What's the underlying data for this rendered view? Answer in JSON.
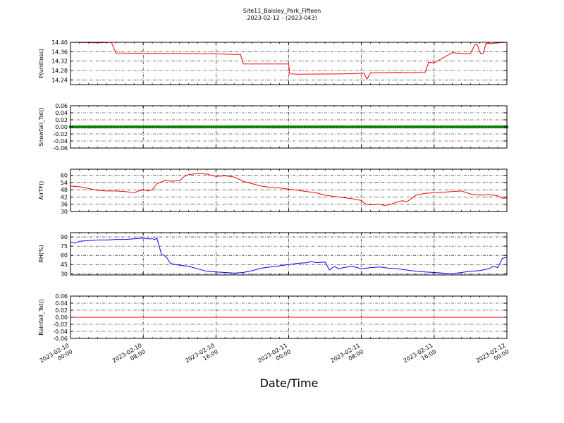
{
  "figure": {
    "title": "Site11_Baisley_Park_Fifteen",
    "subtitle": "2023-02-12 - (2023-043)",
    "xlabel": "Date/Time"
  },
  "chart_data": [
    {
      "type": "line",
      "ylabel": "P(unitless)",
      "ylim": [
        14.22,
        14.4
      ],
      "yticks": [
        "14.24",
        "14.28",
        "14.32",
        "14.36",
        "14.40"
      ],
      "ytick_values": [
        14.24,
        14.28,
        14.32,
        14.36,
        14.4
      ],
      "color": "#ff0000",
      "grid": true,
      "series": [
        {
          "x": [
            0,
            3,
            4.5,
            5,
            10,
            16,
            18,
            18.7,
            19,
            24,
            24.1,
            25,
            30,
            32,
            32.3,
            32.6,
            33,
            36,
            37,
            39,
            39.4,
            39.8,
            40,
            42,
            43,
            43.1,
            44,
            44.5,
            44.7,
            45.1,
            45.4,
            45.7,
            45.9,
            46.3,
            46.6,
            47,
            48
          ],
          "y": [
            14.4,
            14.398,
            14.4,
            14.354,
            14.353,
            14.351,
            14.348,
            14.348,
            14.308,
            14.308,
            14.266,
            14.264,
            14.266,
            14.268,
            14.268,
            14.243,
            14.27,
            14.272,
            14.271,
            14.272,
            14.315,
            14.313,
            14.313,
            14.356,
            14.353,
            14.352,
            14.352,
            14.392,
            14.392,
            14.353,
            14.353,
            14.395,
            14.396,
            14.394,
            14.396,
            14.398,
            14.4
          ]
        }
      ]
    },
    {
      "type": "line",
      "ylabel": "Snowfall_Tot()",
      "ylim": [
        -0.06,
        0.06
      ],
      "yticks": [
        "-0.06",
        "-0.04",
        "-0.02",
        "0.00",
        "0.02",
        "0.04",
        "0.06"
      ],
      "ytick_values": [
        -0.06,
        -0.04,
        -0.02,
        0.0,
        0.02,
        0.04,
        0.06
      ],
      "color": "#008000",
      "markers": true,
      "grid": true,
      "series": [
        {
          "x_range": [
            0,
            48
          ],
          "value": 0.0
        }
      ]
    },
    {
      "type": "line",
      "ylabel": "AirTF()",
      "ylim": [
        30,
        65
      ],
      "yticks": [
        "30",
        "36",
        "42",
        "48",
        "54",
        "60"
      ],
      "ytick_values": [
        30,
        36,
        42,
        48,
        54,
        60
      ],
      "color": "#ff0000",
      "grid": true,
      "series": [
        {
          "x": [
            0,
            1,
            2,
            3,
            4,
            5,
            6,
            7,
            7.5,
            8,
            8.5,
            9,
            9.5,
            10,
            10.5,
            11,
            12,
            12.5,
            13,
            14,
            15,
            16,
            17,
            18,
            19,
            20,
            21,
            22,
            23,
            24,
            25,
            26,
            27,
            28,
            29,
            30,
            31,
            31.5,
            32,
            32.5,
            33,
            34,
            34.5,
            35,
            36,
            36.5,
            37,
            38,
            39,
            40,
            41,
            42,
            43,
            44,
            45,
            46,
            47,
            47.5,
            48
          ],
          "y": [
            51,
            50.5,
            49,
            47.5,
            47,
            47,
            46.5,
            45.5,
            47,
            48,
            47,
            48,
            53,
            54.5,
            56,
            55,
            55.5,
            59,
            60.5,
            61.5,
            61,
            59,
            59.5,
            58.5,
            55,
            53,
            51,
            50,
            49.5,
            48.5,
            47.5,
            46.5,
            45.5,
            43.5,
            42.5,
            41.5,
            40.5,
            40,
            39,
            36,
            35.5,
            36,
            35,
            35.5,
            38,
            39,
            38,
            43.5,
            45,
            45.5,
            46,
            46.5,
            47,
            44.5,
            43.5,
            44,
            43,
            41,
            41
          ]
        }
      ]
    },
    {
      "type": "line",
      "ylabel": "RH(%)",
      "ylim": [
        28,
        97
      ],
      "yticks": [
        "30",
        "45",
        "60",
        "75",
        "90"
      ],
      "ytick_values": [
        30,
        45,
        60,
        75,
        90
      ],
      "color": "#0000ff",
      "grid": true,
      "series": [
        {
          "x": [
            0,
            0.5,
            1,
            2,
            3,
            4,
            5,
            6,
            7,
            8,
            8.5,
            9,
            9.3,
            9.5,
            10,
            10.5,
            11,
            11.5,
            12,
            13,
            14,
            15,
            16,
            17,
            18,
            19,
            20,
            21,
            22,
            23,
            24,
            25,
            26,
            26.5,
            27,
            28,
            28.5,
            29,
            29.5,
            30,
            31,
            32,
            33,
            34,
            35,
            36,
            37,
            38,
            39,
            40,
            41,
            42,
            43,
            44,
            45,
            46,
            46.5,
            47,
            47.5,
            48
          ],
          "y": [
            82,
            80,
            83,
            84,
            85,
            85,
            86,
            86,
            87,
            88,
            87,
            87,
            86,
            88,
            62,
            58,
            47,
            45,
            44,
            42,
            38,
            34,
            33,
            32,
            31,
            32,
            35,
            39,
            41,
            43,
            45,
            47,
            48,
            50,
            48,
            49,
            36,
            42,
            38,
            40,
            42,
            38,
            40,
            41,
            39,
            38,
            36,
            34,
            33,
            32,
            31,
            30,
            32,
            34,
            35,
            38,
            42,
            40,
            55,
            57
          ]
        }
      ]
    },
    {
      "type": "line",
      "ylabel": "Rainfall_Tot()",
      "ylim": [
        -0.06,
        0.06
      ],
      "yticks": [
        "-0.06",
        "-0.04",
        "-0.02",
        "0.00",
        "0.02",
        "0.04",
        "0.06"
      ],
      "ytick_values": [
        -0.06,
        -0.04,
        -0.02,
        0.0,
        0.02,
        0.04,
        0.06
      ],
      "color": "#ff0000",
      "grid": true,
      "series": [
        {
          "x": [
            0,
            48
          ],
          "y": [
            0.0,
            0.0
          ]
        }
      ]
    }
  ],
  "xaxis": {
    "range_hours": [
      0,
      48
    ],
    "tick_hours": [
      0,
      8,
      16,
      24,
      32,
      40,
      48
    ],
    "tick_labels": [
      [
        "2023-02-10",
        "00:00"
      ],
      [
        "2023-02-10",
        "08:00"
      ],
      [
        "2023-02-10",
        "16:00"
      ],
      [
        "2023-02-11",
        "00:00"
      ],
      [
        "2023-02-11",
        "08:00"
      ],
      [
        "2023-02-11",
        "16:00"
      ],
      [
        "2023-02-12",
        "00:00"
      ]
    ]
  }
}
